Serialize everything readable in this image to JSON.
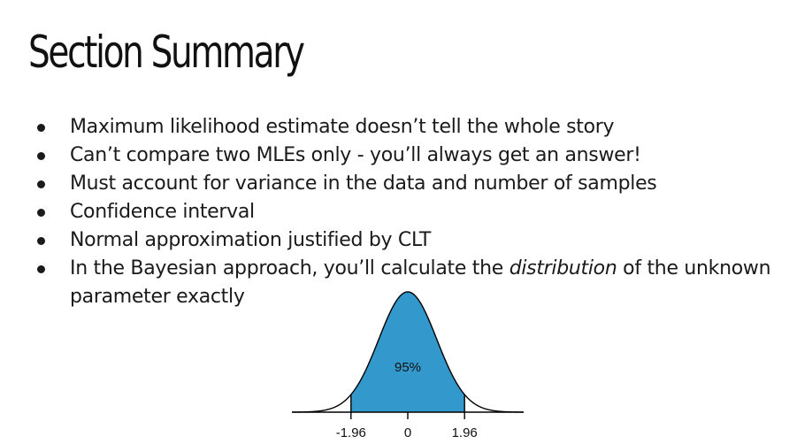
{
  "slide": {
    "title": "Section Summary",
    "bullets": [
      {
        "text": "Maximum likelihood estimate doesn’t tell the whole story"
      },
      {
        "text": "Can’t compare two MLEs only - you’ll always get an answer!"
      },
      {
        "text": "Must account for variance in the data and number of samples"
      },
      {
        "text": "Confidence interval"
      },
      {
        "text": "Normal approximation justified by CLT"
      },
      {
        "before": "In the Bayesian approach, you’ll calculate the ",
        "emph": "distribution",
        "after": " of the unknown parameter exactly"
      }
    ]
  },
  "chart_data": {
    "type": "area",
    "distribution": "standard normal",
    "shaded_region": [
      -1.96,
      1.96
    ],
    "shaded_label": "95%",
    "x_ticks": [
      "-1.96",
      "0",
      "1.96"
    ],
    "x_range": [
      -4,
      4
    ],
    "fill_color": "#3399cc",
    "line_color": "#000000"
  }
}
